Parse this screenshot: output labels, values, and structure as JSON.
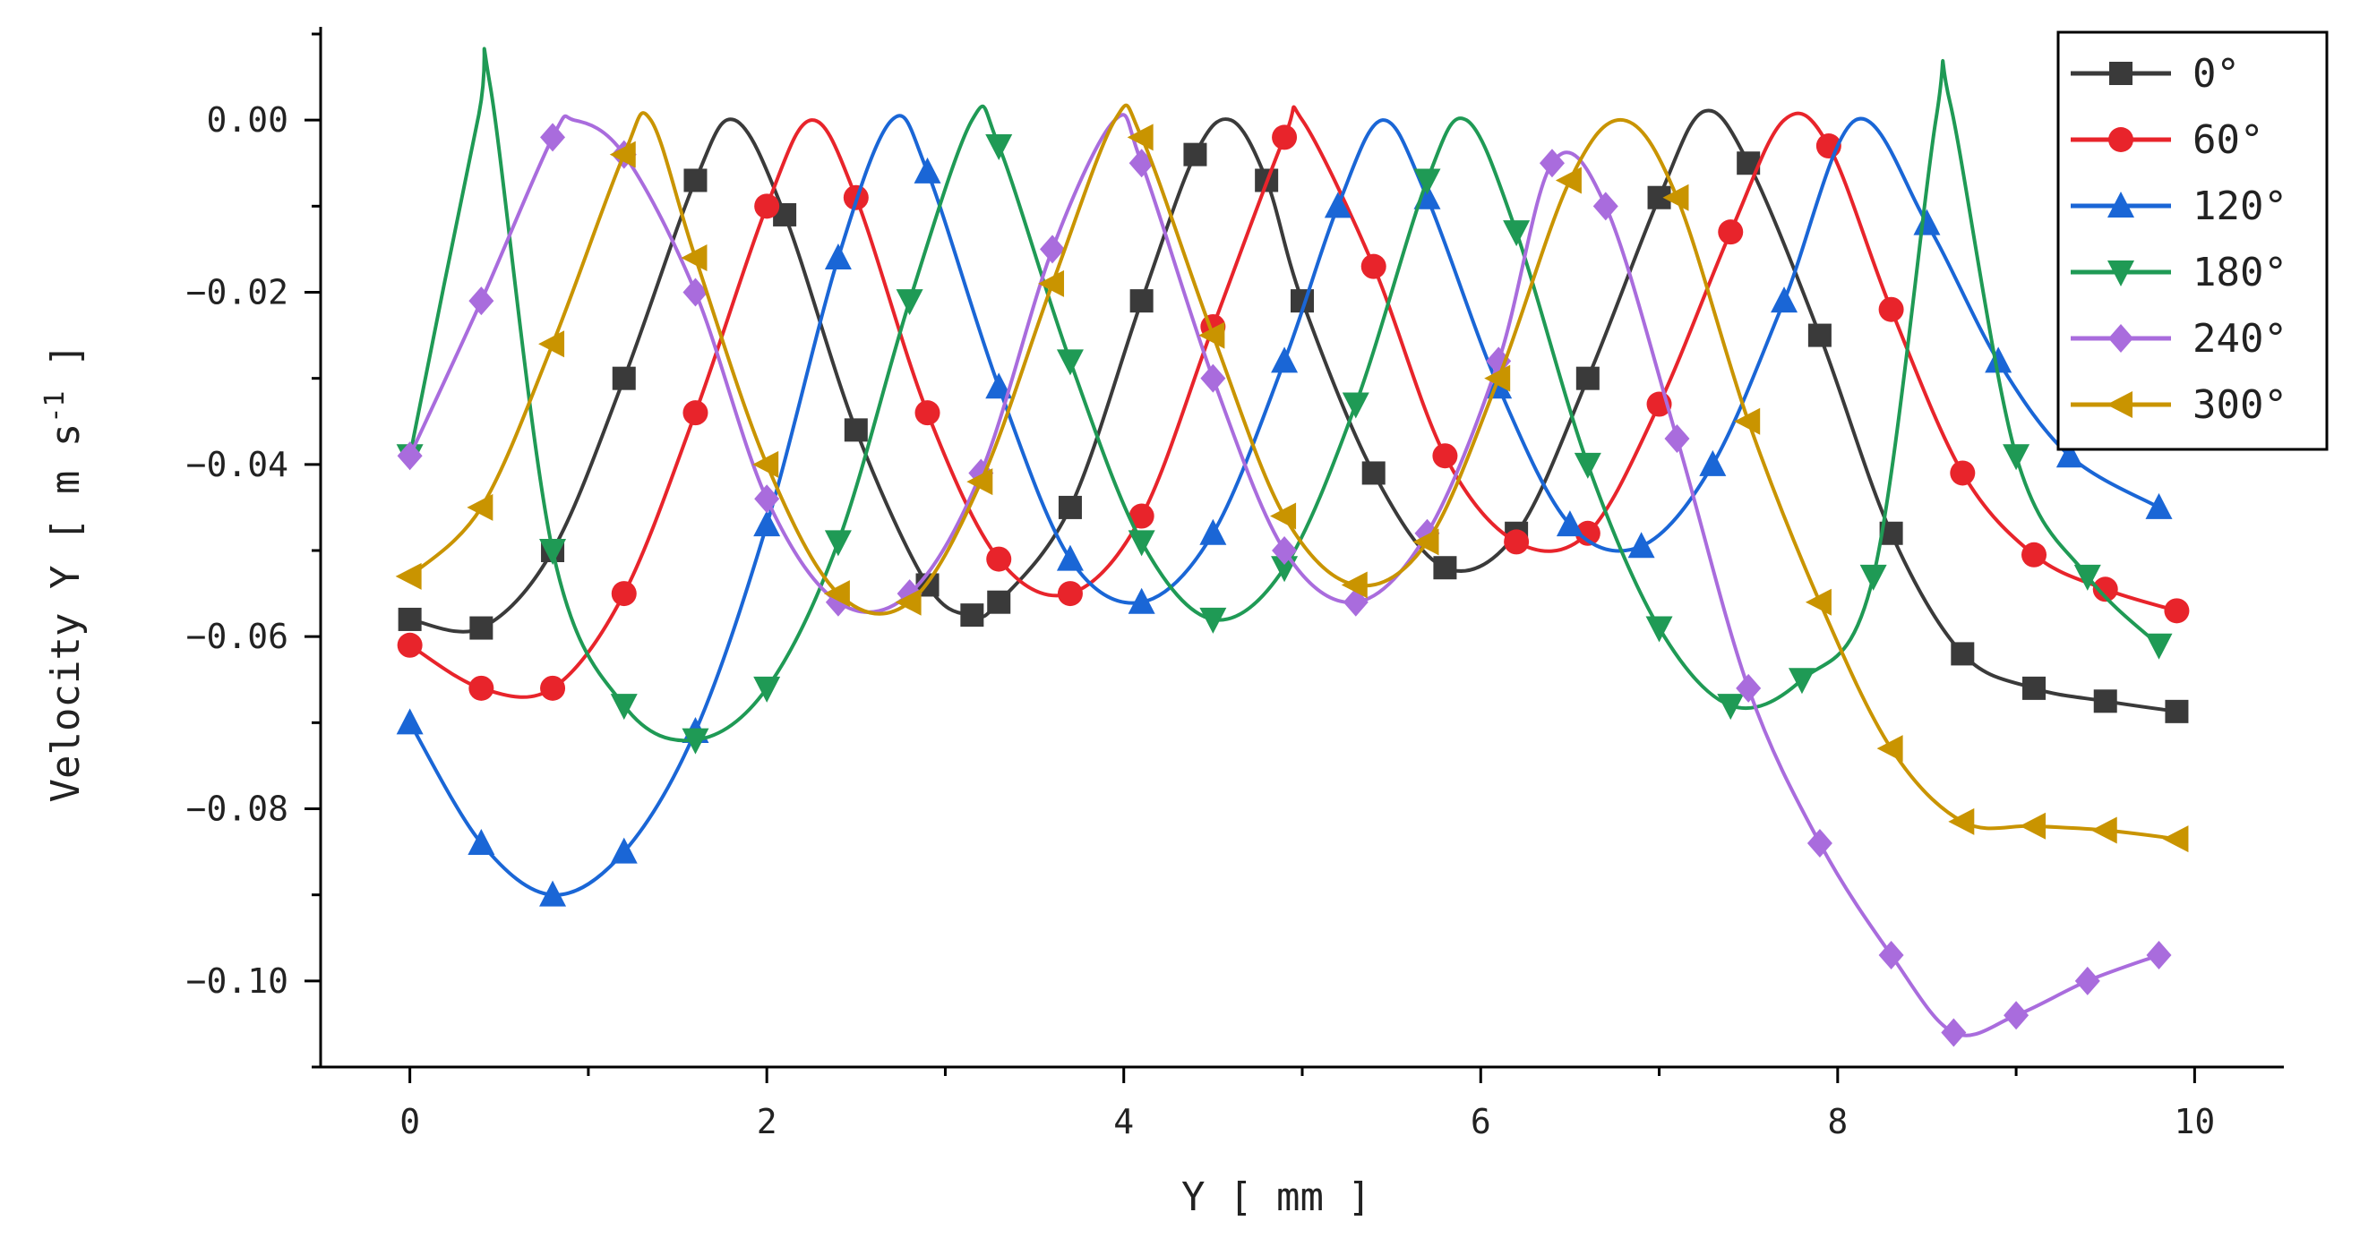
{
  "chart_data": {
    "type": "line",
    "title": "",
    "xlabel": "Y [ mm ]",
    "ylabel": "Velocity Y [ m s^-1 ]",
    "xlim": [
      -0.5,
      10.5
    ],
    "ylim": [
      -0.11,
      0.01
    ],
    "xticks": [
      0,
      2,
      4,
      6,
      8,
      10
    ],
    "xtick_labels": [
      "0",
      "2",
      "4",
      "6",
      "8",
      "10"
    ],
    "yticks": [
      0.0,
      -0.02,
      -0.04,
      -0.06,
      -0.08,
      -0.1
    ],
    "ytick_labels": [
      "0.00",
      "−0.02",
      "−0.04",
      "−0.06",
      "−0.08",
      "−0.10"
    ],
    "legend_position": "top-right",
    "grid": false,
    "series": [
      {
        "name": "0°",
        "color": "#3a3a3a",
        "marker": "square",
        "points": [
          [
            0.0,
            -0.058
          ],
          [
            0.4,
            -0.059
          ],
          [
            0.8,
            -0.05
          ],
          [
            1.2,
            -0.03
          ],
          [
            1.6,
            -0.007
          ],
          [
            1.82,
            0.0
          ],
          [
            2.1,
            -0.011
          ],
          [
            2.5,
            -0.036
          ],
          [
            2.9,
            -0.054
          ],
          [
            3.15,
            -0.0575
          ],
          [
            3.3,
            -0.056
          ],
          [
            3.7,
            -0.045
          ],
          [
            4.1,
            -0.021
          ],
          [
            4.4,
            -0.004
          ],
          [
            4.6,
            0.0
          ],
          [
            4.8,
            -0.007
          ],
          [
            5.0,
            -0.021
          ],
          [
            5.4,
            -0.041
          ],
          [
            5.8,
            -0.052
          ],
          [
            6.2,
            -0.048
          ],
          [
            6.6,
            -0.03
          ],
          [
            7.0,
            -0.009
          ],
          [
            7.25,
            0.001
          ],
          [
            7.5,
            -0.005
          ],
          [
            7.9,
            -0.025
          ],
          [
            8.3,
            -0.048
          ],
          [
            8.7,
            -0.062
          ],
          [
            9.1,
            -0.066
          ],
          [
            9.5,
            -0.0675
          ],
          [
            9.9,
            -0.0687
          ]
        ]
      },
      {
        "name": "60°",
        "color": "#e8242b",
        "marker": "circle",
        "points": [
          [
            0.0,
            -0.061
          ],
          [
            0.4,
            -0.066
          ],
          [
            0.8,
            -0.066
          ],
          [
            1.2,
            -0.055
          ],
          [
            1.6,
            -0.034
          ],
          [
            2.0,
            -0.01
          ],
          [
            2.25,
            0.0
          ],
          [
            2.5,
            -0.009
          ],
          [
            2.9,
            -0.034
          ],
          [
            3.3,
            -0.051
          ],
          [
            3.7,
            -0.055
          ],
          [
            4.1,
            -0.046
          ],
          [
            4.5,
            -0.024
          ],
          [
            4.9,
            -0.002
          ],
          [
            5.0,
            0.0
          ],
          [
            5.4,
            -0.017
          ],
          [
            5.8,
            -0.039
          ],
          [
            6.2,
            -0.049
          ],
          [
            6.6,
            -0.048
          ],
          [
            7.0,
            -0.033
          ],
          [
            7.4,
            -0.013
          ],
          [
            7.7,
            0.0
          ],
          [
            7.95,
            -0.003
          ],
          [
            8.3,
            -0.022
          ],
          [
            8.7,
            -0.041
          ],
          [
            9.1,
            -0.0505
          ],
          [
            9.5,
            -0.0545
          ],
          [
            9.9,
            -0.057
          ]
        ]
      },
      {
        "name": "120°",
        "color": "#1a66d6",
        "marker": "triangle-up",
        "points": [
          [
            0.0,
            -0.07
          ],
          [
            0.4,
            -0.084
          ],
          [
            0.8,
            -0.09
          ],
          [
            1.2,
            -0.085
          ],
          [
            1.6,
            -0.071
          ],
          [
            2.0,
            -0.047
          ],
          [
            2.4,
            -0.016
          ],
          [
            2.7,
            0.0
          ],
          [
            2.9,
            -0.006
          ],
          [
            3.3,
            -0.031
          ],
          [
            3.7,
            -0.051
          ],
          [
            4.1,
            -0.056
          ],
          [
            4.5,
            -0.048
          ],
          [
            4.9,
            -0.028
          ],
          [
            5.2,
            -0.01
          ],
          [
            5.45,
            0.0
          ],
          [
            5.7,
            -0.009
          ],
          [
            6.1,
            -0.031
          ],
          [
            6.5,
            -0.047
          ],
          [
            6.9,
            -0.0495
          ],
          [
            7.3,
            -0.04
          ],
          [
            7.7,
            -0.021
          ],
          [
            8.1,
            0.0
          ],
          [
            8.5,
            -0.012
          ],
          [
            8.9,
            -0.028
          ],
          [
            9.3,
            -0.039
          ],
          [
            9.8,
            -0.045
          ]
        ]
      },
      {
        "name": "180°",
        "color": "#1f9a55",
        "marker": "triangle-down",
        "points": [
          [
            0.0,
            -0.039
          ],
          [
            0.38,
            0.0
          ],
          [
            0.45,
            0.004
          ],
          [
            0.8,
            -0.05
          ],
          [
            1.2,
            -0.068
          ],
          [
            1.6,
            -0.072
          ],
          [
            2.0,
            -0.066
          ],
          [
            2.4,
            -0.049
          ],
          [
            2.8,
            -0.021
          ],
          [
            3.15,
            0.0
          ],
          [
            3.3,
            -0.003
          ],
          [
            3.7,
            -0.028
          ],
          [
            4.1,
            -0.049
          ],
          [
            4.5,
            -0.058
          ],
          [
            4.9,
            -0.052
          ],
          [
            5.3,
            -0.033
          ],
          [
            5.7,
            -0.007
          ],
          [
            5.92,
            0.0
          ],
          [
            6.2,
            -0.013
          ],
          [
            6.6,
            -0.04
          ],
          [
            7.0,
            -0.059
          ],
          [
            7.4,
            -0.068
          ],
          [
            7.8,
            -0.065
          ],
          [
            8.2,
            -0.053
          ],
          [
            8.55,
            0.0
          ],
          [
            8.63,
            0.002
          ],
          [
            9.0,
            -0.039
          ],
          [
            9.4,
            -0.053
          ],
          [
            9.8,
            -0.061
          ]
        ]
      },
      {
        "name": "240°",
        "color": "#a96cdd",
        "marker": "diamond",
        "points": [
          [
            0.0,
            -0.039
          ],
          [
            0.4,
            -0.021
          ],
          [
            0.8,
            -0.002
          ],
          [
            0.92,
            0.0
          ],
          [
            1.2,
            -0.004
          ],
          [
            1.6,
            -0.02
          ],
          [
            2.0,
            -0.044
          ],
          [
            2.4,
            -0.056
          ],
          [
            2.8,
            -0.055
          ],
          [
            3.2,
            -0.041
          ],
          [
            3.6,
            -0.015
          ],
          [
            3.95,
            0.0
          ],
          [
            4.1,
            -0.005
          ],
          [
            4.5,
            -0.03
          ],
          [
            4.9,
            -0.05
          ],
          [
            5.3,
            -0.056
          ],
          [
            5.7,
            -0.048
          ],
          [
            6.1,
            -0.028
          ],
          [
            6.4,
            -0.005
          ],
          [
            6.7,
            -0.01
          ],
          [
            7.1,
            -0.037
          ],
          [
            7.5,
            -0.066
          ],
          [
            7.9,
            -0.084
          ],
          [
            8.3,
            -0.097
          ],
          [
            8.65,
            -0.106
          ],
          [
            9.0,
            -0.104
          ],
          [
            9.4,
            -0.1
          ],
          [
            9.8,
            -0.097
          ]
        ]
      },
      {
        "name": "300°",
        "color": "#c99400",
        "marker": "triangle-left",
        "points": [
          [
            0.0,
            -0.053
          ],
          [
            0.4,
            -0.045
          ],
          [
            0.8,
            -0.026
          ],
          [
            1.2,
            -0.004
          ],
          [
            1.35,
            0.0
          ],
          [
            1.6,
            -0.016
          ],
          [
            2.0,
            -0.04
          ],
          [
            2.4,
            -0.055
          ],
          [
            2.8,
            -0.056
          ],
          [
            3.2,
            -0.042
          ],
          [
            3.6,
            -0.019
          ],
          [
            3.95,
            0.0
          ],
          [
            4.1,
            -0.002
          ],
          [
            4.5,
            -0.025
          ],
          [
            4.9,
            -0.046
          ],
          [
            5.3,
            -0.054
          ],
          [
            5.7,
            -0.049
          ],
          [
            6.1,
            -0.03
          ],
          [
            6.5,
            -0.007
          ],
          [
            6.8,
            0.0
          ],
          [
            7.1,
            -0.009
          ],
          [
            7.5,
            -0.035
          ],
          [
            7.9,
            -0.056
          ],
          [
            8.3,
            -0.073
          ],
          [
            8.7,
            -0.0815
          ],
          [
            9.1,
            -0.082
          ],
          [
            9.5,
            -0.0825
          ],
          [
            9.9,
            -0.0835
          ]
        ]
      }
    ]
  }
}
